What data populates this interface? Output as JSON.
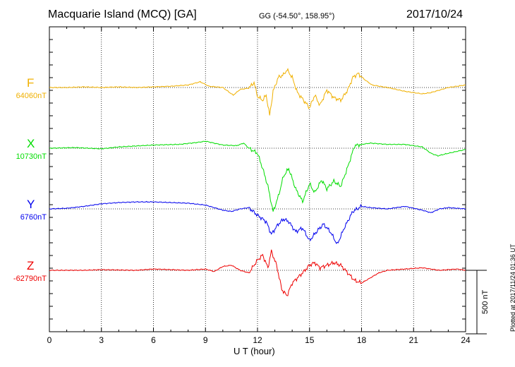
{
  "header": {
    "station": "Macquarie Island (MCQ)  [GA]",
    "coords": "GG (-54.50°, 158.95°)",
    "date": "2017/10/24"
  },
  "footer": {
    "plotted": "Plotted at 2017/11/24 01:36 UT",
    "scale_label": "500 nT"
  },
  "chart_data": {
    "type": "line",
    "xlabel": "U T (hour)",
    "xlim": [
      0,
      24
    ],
    "xticks": [
      0,
      3,
      6,
      9,
      12,
      15,
      18,
      21,
      24
    ],
    "grid": true,
    "scale_bar_nT": 500,
    "series": [
      {
        "name": "F",
        "base_label": "64060nT",
        "color": "#f0b000",
        "points": [
          [
            0,
            0
          ],
          [
            1,
            0
          ],
          [
            2,
            5
          ],
          [
            3,
            0
          ],
          [
            4,
            5
          ],
          [
            5,
            0
          ],
          [
            6,
            5
          ],
          [
            7,
            10
          ],
          [
            8,
            20
          ],
          [
            8.7,
            45
          ],
          [
            9.2,
            10
          ],
          [
            10,
            0
          ],
          [
            10.6,
            -60
          ],
          [
            11,
            -15
          ],
          [
            11.5,
            -5
          ],
          [
            11.8,
            40
          ],
          [
            12,
            -70
          ],
          [
            12.3,
            -100
          ],
          [
            12.5,
            -60
          ],
          [
            12.7,
            -220
          ],
          [
            12.9,
            -30
          ],
          [
            13.2,
            80
          ],
          [
            13.5,
            100
          ],
          [
            13.7,
            140
          ],
          [
            14,
            80
          ],
          [
            14.3,
            -40
          ],
          [
            14.6,
            -90
          ],
          [
            15,
            -160
          ],
          [
            15.3,
            -60
          ],
          [
            15.6,
            -140
          ],
          [
            16,
            -20
          ],
          [
            16.4,
            -80
          ],
          [
            16.8,
            -100
          ],
          [
            17.2,
            -20
          ],
          [
            17.5,
            80
          ],
          [
            17.8,
            110
          ],
          [
            18.2,
            60
          ],
          [
            18.6,
            20
          ],
          [
            19.5,
            0
          ],
          [
            20.5,
            -30
          ],
          [
            21.5,
            -50
          ],
          [
            22,
            -40
          ],
          [
            22.5,
            -20
          ],
          [
            23,
            0
          ],
          [
            24,
            20
          ]
        ]
      },
      {
        "name": "X",
        "base_label": "10730nT",
        "color": "#00dd00",
        "points": [
          [
            0,
            0
          ],
          [
            1.5,
            5
          ],
          [
            3,
            -5
          ],
          [
            4,
            10
          ],
          [
            6,
            25
          ],
          [
            7.5,
            30
          ],
          [
            8.5,
            45
          ],
          [
            9,
            55
          ],
          [
            9.5,
            40
          ],
          [
            10,
            25
          ],
          [
            10.8,
            20
          ],
          [
            11.2,
            40
          ],
          [
            11.5,
            0
          ],
          [
            12,
            -40
          ],
          [
            12.3,
            -160
          ],
          [
            12.6,
            -300
          ],
          [
            12.9,
            -500
          ],
          [
            13.2,
            -380
          ],
          [
            13.5,
            -220
          ],
          [
            13.8,
            -160
          ],
          [
            14.2,
            -320
          ],
          [
            14.6,
            -420
          ],
          [
            15,
            -280
          ],
          [
            15.3,
            -350
          ],
          [
            15.7,
            -250
          ],
          [
            16,
            -320
          ],
          [
            16.4,
            -260
          ],
          [
            16.8,
            -300
          ],
          [
            17.2,
            -150
          ],
          [
            17.6,
            20
          ],
          [
            18,
            30
          ],
          [
            18.5,
            40
          ],
          [
            19.5,
            30
          ],
          [
            20.5,
            30
          ],
          [
            21.5,
            10
          ],
          [
            22,
            -40
          ],
          [
            22.4,
            -60
          ],
          [
            23,
            -40
          ],
          [
            24,
            -10
          ]
        ]
      },
      {
        "name": "Y",
        "base_label": "6760nT",
        "color": "#0000ee",
        "points": [
          [
            0,
            0
          ],
          [
            1,
            5
          ],
          [
            2,
            20
          ],
          [
            3,
            40
          ],
          [
            4,
            50
          ],
          [
            5,
            55
          ],
          [
            6,
            55
          ],
          [
            7,
            50
          ],
          [
            8,
            45
          ],
          [
            9,
            30
          ],
          [
            9.5,
            10
          ],
          [
            10,
            -10
          ],
          [
            10.5,
            -20
          ],
          [
            11,
            0
          ],
          [
            11.5,
            10
          ],
          [
            12,
            -50
          ],
          [
            12.5,
            -100
          ],
          [
            12.8,
            -200
          ],
          [
            13.2,
            -120
          ],
          [
            13.5,
            -80
          ],
          [
            13.8,
            -100
          ],
          [
            14.2,
            -180
          ],
          [
            14.6,
            -150
          ],
          [
            15,
            -250
          ],
          [
            15.4,
            -180
          ],
          [
            15.8,
            -120
          ],
          [
            16.2,
            -180
          ],
          [
            16.6,
            -280
          ],
          [
            17,
            -150
          ],
          [
            17.5,
            -20
          ],
          [
            18,
            20
          ],
          [
            18.5,
            10
          ],
          [
            19.5,
            0
          ],
          [
            20.5,
            20
          ],
          [
            21.5,
            -10
          ],
          [
            22,
            -30
          ],
          [
            22.5,
            0
          ],
          [
            23,
            10
          ],
          [
            24,
            0
          ]
        ]
      },
      {
        "name": "Z",
        "base_label": "-62790nT",
        "color": "#ee0000",
        "points": [
          [
            0,
            0
          ],
          [
            2,
            0
          ],
          [
            3,
            5
          ],
          [
            5,
            0
          ],
          [
            6,
            10
          ],
          [
            7,
            5
          ],
          [
            8,
            0
          ],
          [
            9,
            10
          ],
          [
            9.5,
            -10
          ],
          [
            10,
            30
          ],
          [
            10.5,
            40
          ],
          [
            11,
            0
          ],
          [
            11.5,
            -20
          ],
          [
            12,
            80
          ],
          [
            12.3,
            120
          ],
          [
            12.6,
            20
          ],
          [
            12.8,
            150
          ],
          [
            13.1,
            40
          ],
          [
            13.4,
            -150
          ],
          [
            13.7,
            -200
          ],
          [
            14,
            -100
          ],
          [
            14.3,
            -60
          ],
          [
            14.6,
            -20
          ],
          [
            15,
            40
          ],
          [
            15.3,
            60
          ],
          [
            15.6,
            20
          ],
          [
            16,
            40
          ],
          [
            16.4,
            60
          ],
          [
            16.8,
            40
          ],
          [
            17.2,
            -20
          ],
          [
            17.6,
            -80
          ],
          [
            18,
            -100
          ],
          [
            18.5,
            -60
          ],
          [
            19,
            -20
          ],
          [
            19.5,
            0
          ],
          [
            20.5,
            10
          ],
          [
            21.5,
            20
          ],
          [
            22.5,
            0
          ],
          [
            23.5,
            10
          ],
          [
            24,
            0
          ]
        ]
      }
    ]
  }
}
